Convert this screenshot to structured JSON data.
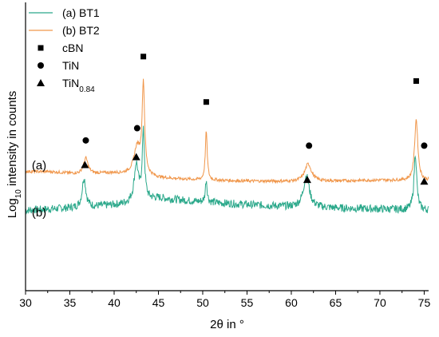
{
  "chart_data": {
    "type": "line",
    "xlabel": "2θ in °",
    "ylabel": "Log10 intensity in counts",
    "ylabel_parts": {
      "prefix": "Log",
      "sub": "10",
      "suffix": " intensity in counts"
    },
    "xlim": [
      30,
      75.5
    ],
    "xticks": [
      30,
      35,
      40,
      45,
      50,
      55,
      60,
      65,
      70,
      75
    ],
    "y_tick_labels": false,
    "colors": {
      "BT1": "#2aa88a",
      "BT2": "#f0964a",
      "axis": "#000000"
    },
    "series": [
      {
        "name": "(a) BT1",
        "curve_label": "(b)",
        "noise": 0.9,
        "baseline": [
          [
            30,
            1.2
          ],
          [
            33,
            1.35
          ],
          [
            37,
            1.55
          ],
          [
            41,
            1.9
          ],
          [
            43,
            2.35
          ],
          [
            45,
            2.6
          ],
          [
            50,
            2.15
          ],
          [
            55,
            1.85
          ],
          [
            60,
            1.6
          ],
          [
            65,
            1.45
          ],
          [
            70,
            1.35
          ],
          [
            75.5,
            1.2
          ]
        ],
        "peaks": [
          [
            36.6,
            3.4,
            0.25
          ],
          [
            42.5,
            4.2,
            0.28
          ],
          [
            43.3,
            7.6,
            0.16
          ],
          [
            50.4,
            2.6,
            0.12
          ],
          [
            61.7,
            3.6,
            0.4
          ],
          [
            74.0,
            6.5,
            0.18
          ]
        ]
      },
      {
        "name": "(b) BT2",
        "curve_label": "(a)",
        "noise": 0.35,
        "baseline": [
          [
            30,
            5.65
          ],
          [
            33,
            5.6
          ],
          [
            36,
            5.35
          ],
          [
            40,
            5.45
          ],
          [
            45,
            4.9
          ],
          [
            50,
            4.65
          ],
          [
            55,
            4.55
          ],
          [
            60,
            4.5
          ],
          [
            65,
            4.55
          ],
          [
            70,
            4.65
          ],
          [
            75.5,
            4.6
          ]
        ],
        "peaks": [
          [
            36.8,
            1.8,
            0.3
          ],
          [
            42.6,
            3.2,
            0.45
          ],
          [
            43.3,
            10.2,
            0.17
          ],
          [
            50.4,
            5.6,
            0.13
          ],
          [
            61.9,
            2.0,
            0.45
          ],
          [
            74.1,
            7.0,
            0.22
          ]
        ]
      }
    ],
    "markers": [
      {
        "shape": "square",
        "x": 43.3,
        "y": 18.8
      },
      {
        "shape": "square",
        "x": 50.4,
        "y": 13.6
      },
      {
        "shape": "square",
        "x": 74.1,
        "y": 16.0
      },
      {
        "shape": "circle",
        "x": 36.8,
        "y": 9.2
      },
      {
        "shape": "circle",
        "x": 42.6,
        "y": 10.6
      },
      {
        "shape": "circle",
        "x": 62.0,
        "y": 8.6
      },
      {
        "shape": "circle",
        "x": 75.0,
        "y": 8.6
      },
      {
        "shape": "triangle",
        "x": 36.7,
        "y": 6.4
      },
      {
        "shape": "triangle",
        "x": 42.5,
        "y": 7.3
      },
      {
        "shape": "triangle",
        "x": 61.8,
        "y": 4.7
      },
      {
        "shape": "triangle",
        "x": 75.0,
        "y": 4.5
      }
    ],
    "ylim": [
      -8,
      25
    ],
    "legend": {
      "placement": "top-left",
      "entries": [
        {
          "label": "(a) BT1",
          "kind": "line",
          "color": "#2aa88a"
        },
        {
          "label": "(b) BT2",
          "kind": "line",
          "color": "#f0964a"
        },
        {
          "label": "cBN",
          "kind": "square"
        },
        {
          "label": "TiN",
          "kind": "circle"
        },
        {
          "label": "TiN",
          "sub": "0.84",
          "kind": "triangle"
        }
      ]
    }
  }
}
